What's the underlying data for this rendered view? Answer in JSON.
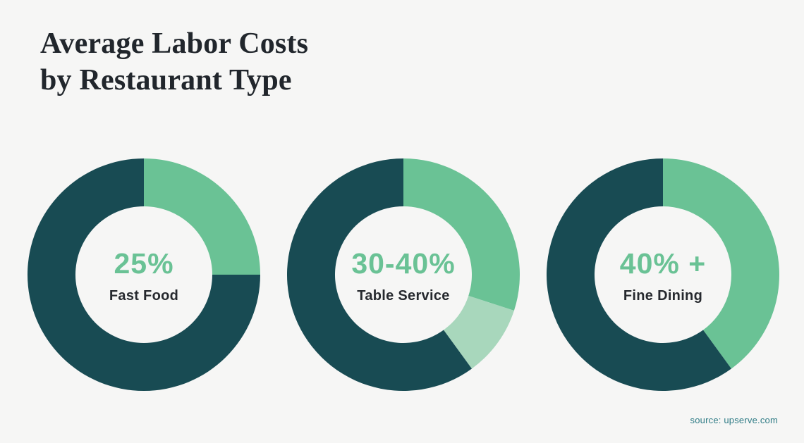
{
  "page": {
    "background": "#f6f6f5",
    "title_line1": "Average Labor Costs",
    "title_line2": "by Restaurant Type",
    "source": "source: upserve.com"
  },
  "colors": {
    "dark_teal": "#184b53",
    "green": "#6ac295",
    "light_green": "#a8d7bc",
    "title_text": "#21262c",
    "label_text": "#26292e",
    "value_text": "#6ac295",
    "source_text": "#2e7b85",
    "background": "#f6f6f5"
  },
  "chart_data": {
    "type": "pie",
    "variant": "donut",
    "title": "Average Labor Costs by Restaurant Type",
    "source": "source: upserve.com",
    "legend": "none",
    "start_angle_deg": 0,
    "direction": "clockwise",
    "outer_radius_px": 165,
    "inner_radius_px": 97,
    "charts": [
      {
        "label": "Fast Food",
        "value_label": "25%",
        "value_pct": 25,
        "segments": [
          {
            "name": "labor-cost",
            "value": 25,
            "color": "#6ac295"
          },
          {
            "name": "remainder",
            "value": 75,
            "color": "#184b53"
          }
        ]
      },
      {
        "label": "Table Service",
        "value_label": "30-40%",
        "value_pct_min": 30,
        "value_pct_max": 40,
        "segments": [
          {
            "name": "labor-cost-min",
            "value": 30,
            "color": "#6ac295"
          },
          {
            "name": "labor-cost-range",
            "value": 10,
            "color": "#a8d7bc"
          },
          {
            "name": "remainder",
            "value": 60,
            "color": "#184b53"
          }
        ]
      },
      {
        "label": "Fine Dining",
        "value_label": "40% +",
        "value_pct_min": 40,
        "segments": [
          {
            "name": "labor-cost",
            "value": 40,
            "color": "#6ac295"
          },
          {
            "name": "remainder",
            "value": 60,
            "color": "#184b53"
          }
        ]
      }
    ]
  }
}
